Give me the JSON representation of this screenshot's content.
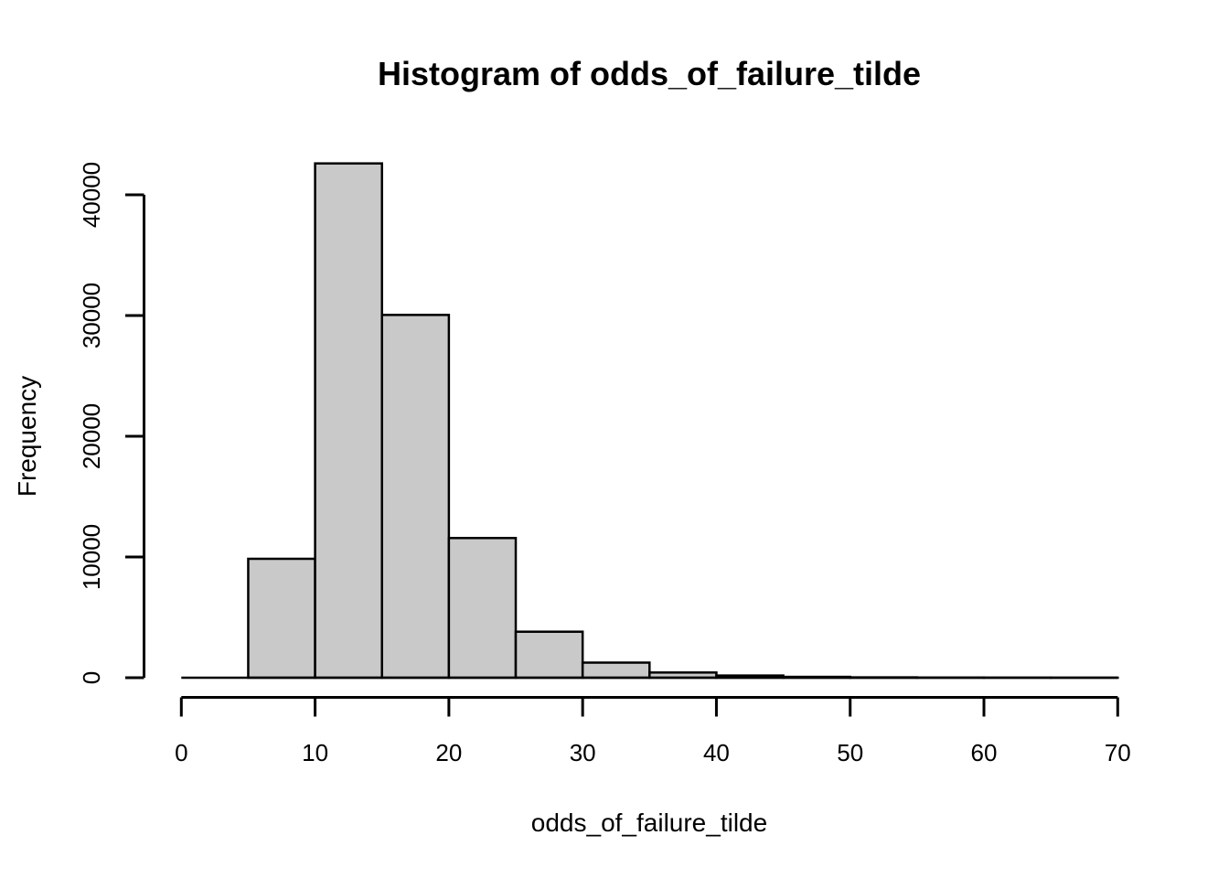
{
  "figure": {
    "background_color": "#FFFFFF",
    "plot_type": "R base graphics histogram"
  },
  "chart_data": {
    "type": "bar",
    "subtype": "histogram",
    "title": "Histogram of odds_of_failure_tilde",
    "xlabel": "odds_of_failure_tilde",
    "ylabel": "Frequency",
    "bin_edges": [
      0,
      5,
      10,
      15,
      20,
      25,
      30,
      35,
      40,
      45,
      50,
      55,
      60,
      65,
      70
    ],
    "counts": [
      0,
      9850,
      42600,
      30050,
      11570,
      3810,
      1250,
      430,
      180,
      70,
      30,
      12,
      5,
      2
    ],
    "x_ticks": [
      0,
      10,
      20,
      30,
      40,
      50,
      60,
      70
    ],
    "y_ticks": [
      0,
      10000,
      20000,
      30000,
      40000
    ],
    "y_tick_labels": [
      "0",
      "10000",
      "20000",
      "30000",
      "40000"
    ],
    "x_tick_labels": [
      "0",
      "10",
      "20",
      "30",
      "40",
      "50",
      "60",
      "70"
    ],
    "xlim": [
      0,
      70
    ],
    "ylim": [
      0,
      42600
    ],
    "grid": "off",
    "legend": "none",
    "bar_fill": "#C9C9C9",
    "bar_stroke": "#000000",
    "axis_color": "#000000",
    "text_color": "#000000"
  }
}
